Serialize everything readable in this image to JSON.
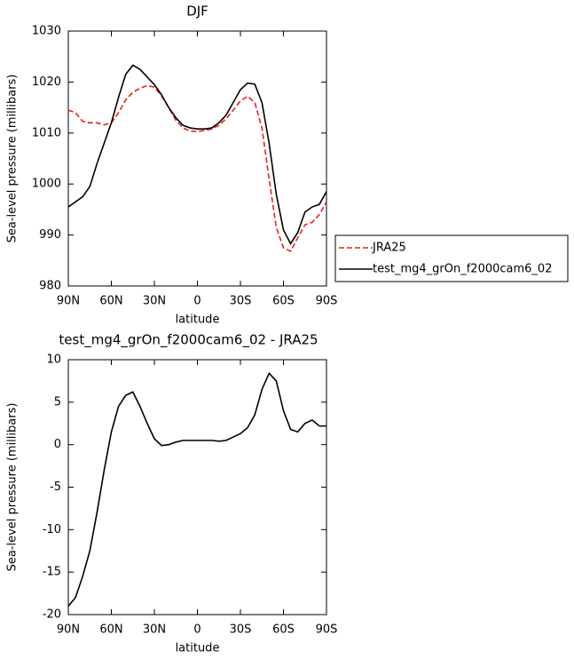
{
  "chart_data": [
    {
      "type": "line",
      "title": "DJF",
      "x_label": "latitude",
      "y_label": "Sea-level pressure (millibars)",
      "x": [
        90,
        85,
        80,
        75,
        70,
        65,
        60,
        55,
        50,
        45,
        40,
        35,
        30,
        25,
        20,
        15,
        10,
        5,
        0,
        -5,
        -10,
        -15,
        -20,
        -25,
        -30,
        -35,
        -40,
        -45,
        -50,
        -55,
        -60,
        -65,
        -70,
        -75,
        -80,
        -85,
        -90
      ],
      "series": [
        {
          "name": "JRA25",
          "color": "#e8201c",
          "dash": "dashed",
          "values": [
            1014.5,
            1014,
            1012.3,
            1012,
            1012,
            1011.6,
            1012,
            1014,
            1016.5,
            1018,
            1018.8,
            1019.3,
            1019,
            1017.3,
            1015,
            1012.5,
            1011,
            1010.4,
            1010.3,
            1010.5,
            1010.8,
            1011.5,
            1012.8,
            1014.5,
            1016.3,
            1017.2,
            1016,
            1011,
            1001,
            991.5,
            987.5,
            986.8,
            989.5,
            992,
            992.5,
            994,
            996.5
          ]
        },
        {
          "name": "test_mg4_grOn_f2000cam6_02",
          "color": "#000000",
          "dash": "solid",
          "values": [
            995.5,
            996.5,
            997.5,
            999.5,
            1004,
            1008,
            1012,
            1017,
            1021.5,
            1023.3,
            1022.5,
            1021,
            1019.5,
            1017.5,
            1015,
            1013,
            1011.5,
            1011,
            1010.8,
            1010.8,
            1011,
            1012,
            1013.5,
            1016,
            1018.5,
            1019.8,
            1019.6,
            1016,
            1008,
            998,
            991,
            988.3,
            990.5,
            994.5,
            995.5,
            996,
            998.5
          ]
        }
      ],
      "xlim": [
        90,
        -90
      ],
      "xticks": [
        {
          "value": 90,
          "label": "90N"
        },
        {
          "value": 60,
          "label": "60N"
        },
        {
          "value": 30,
          "label": "30N"
        },
        0,
        {
          "value": -30,
          "label": "30S"
        },
        {
          "value": -60,
          "label": "60S"
        },
        {
          "value": -90,
          "label": "90S"
        }
      ],
      "ylim": [
        980,
        1030
      ],
      "yticks": [
        980,
        990,
        1000,
        1010,
        1020,
        1030
      ],
      "legend": "outside-right"
    },
    {
      "type": "line",
      "title": "test_mg4_grOn_f2000cam6_02 - JRA25",
      "x_label": "latitude",
      "y_label": "Sea-level pressure (millibars)",
      "x": [
        90,
        85,
        80,
        75,
        70,
        65,
        60,
        55,
        50,
        45,
        40,
        35,
        30,
        25,
        20,
        15,
        10,
        5,
        0,
        -5,
        -10,
        -15,
        -20,
        -25,
        -30,
        -35,
        -40,
        -45,
        -50,
        -55,
        -60,
        -65,
        -70,
        -75,
        -80,
        -85,
        -90
      ],
      "color": "#000000",
      "values": [
        -19,
        -18,
        -15.5,
        -12.5,
        -8,
        -3,
        1.5,
        4.5,
        5.8,
        6.2,
        4.5,
        2.5,
        0.7,
        -0.1,
        0,
        0.3,
        0.5,
        0.5,
        0.5,
        0.5,
        0.5,
        0.4,
        0.5,
        0.9,
        1.3,
        2,
        3.5,
        6.5,
        8.4,
        7.5,
        4,
        1.8,
        1.5,
        2.5,
        2.9,
        2.2,
        2.2
      ],
      "xlim": [
        90,
        -90
      ],
      "xticks": [
        {
          "value": 90,
          "label": "90N"
        },
        {
          "value": 60,
          "label": "60N"
        },
        {
          "value": 30,
          "label": "30N"
        },
        0,
        {
          "value": -30,
          "label": "30S"
        },
        {
          "value": -60,
          "label": "60S"
        },
        {
          "value": -90,
          "label": "90S"
        }
      ],
      "ylim": [
        -20,
        10
      ],
      "yticks": [
        -20,
        -15,
        -10,
        -5,
        0,
        5,
        10
      ]
    }
  ]
}
